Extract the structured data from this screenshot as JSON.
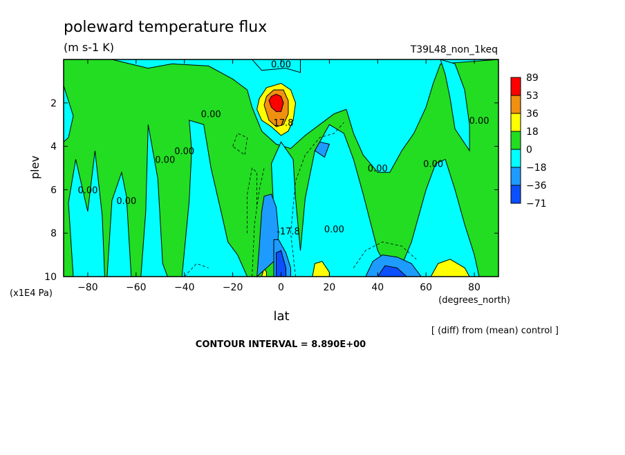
{
  "chart_data": {
    "type": "heatmap",
    "title": "poleward temperature flux",
    "units": "(m s-1 K)",
    "run_label": "T39L48_non_1keq",
    "xlabel": "lat",
    "x_units": "(degrees_north)",
    "ylabel": "plev",
    "y_units": "(x1E4 Pa)",
    "xlim": [
      -90,
      90
    ],
    "ylim": [
      10,
      0
    ],
    "x_ticks": [
      -80,
      -60,
      -40,
      -20,
      0,
      20,
      40,
      60,
      80
    ],
    "x_tick_labels": [
      "−80",
      "−60",
      "−40",
      "−20",
      "0",
      "20",
      "40",
      "60",
      "80"
    ],
    "y_ticks": [
      2,
      4,
      6,
      8,
      10
    ],
    "y_tick_labels": [
      "2",
      "4",
      "6",
      "8",
      "10"
    ],
    "colorbar": {
      "levels": [
        89,
        53,
        36,
        18,
        0,
        -18,
        -36,
        -71
      ],
      "level_labels": [
        "89",
        "53",
        "36",
        "18",
        "0",
        "−18",
        "−36",
        "−71"
      ],
      "colors": [
        "#ff0000",
        "#f09010",
        "#ffff00",
        "#22dd22",
        "#00ffff",
        "#1e9bff",
        "#0a50ff"
      ]
    },
    "contour_labels": [
      {
        "text": "0.00",
        "lat": 0,
        "plev": 0.2
      },
      {
        "text": "0.00",
        "lat": -29,
        "plev": 2.5
      },
      {
        "text": "0.00",
        "lat": -40,
        "plev": 4.2
      },
      {
        "text": "0.00",
        "lat": -48,
        "plev": 4.6
      },
      {
        "text": "0.00",
        "lat": -80,
        "plev": 6.0
      },
      {
        "text": "0.00",
        "lat": -64,
        "plev": 6.5
      },
      {
        "text": "0.00",
        "lat": 40,
        "plev": 5.0
      },
      {
        "text": "0.00",
        "lat": 63,
        "plev": 4.8
      },
      {
        "text": "0.00",
        "lat": 82,
        "plev": 2.8
      },
      {
        "text": "0.00",
        "lat": 22,
        "plev": 7.8
      },
      {
        "text": "17.8",
        "lat": 1,
        "plev": 2.9
      },
      {
        "text": "-17.8",
        "lat": 3,
        "plev": 7.9
      }
    ],
    "note": "[ (diff) from (mean) control ]",
    "contour_interval": "CONTOUR INTERVAL = 8.890E+00"
  }
}
